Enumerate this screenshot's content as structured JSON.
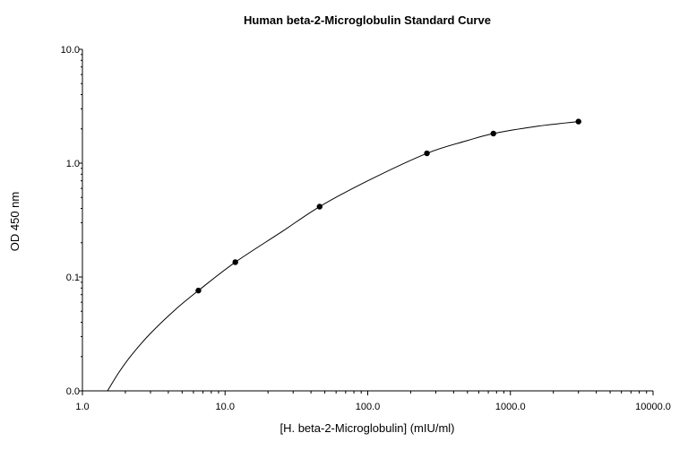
{
  "chart_data": {
    "type": "scatter",
    "title": "Human beta-2-Microglobulin Standard Curve",
    "xlabel": "[H. beta-2-Microglobulin] (mIU/ml)",
    "ylabel": "OD 450 nm",
    "x_scale": "log",
    "y_scale": "log",
    "xlim": [
      1.0,
      10000.0
    ],
    "ylim": [
      0.01,
      10.0
    ],
    "x_ticks": [
      {
        "value": 1,
        "label": "1.0"
      },
      {
        "value": 10,
        "label": "10.0"
      },
      {
        "value": 100,
        "label": "100.0"
      },
      {
        "value": 1000,
        "label": "1000.0"
      },
      {
        "value": 10000,
        "label": "10000.0"
      }
    ],
    "y_ticks": [
      {
        "value": 0.01,
        "label": "0.0"
      },
      {
        "value": 0.1,
        "label": "0.1"
      },
      {
        "value": 1,
        "label": "1.0"
      },
      {
        "value": 10,
        "label": "10.0"
      }
    ],
    "grid": false,
    "legend": "none",
    "series": [
      {
        "points": [
          {
            "x": 6.5,
            "y": 0.076
          },
          {
            "x": 11.8,
            "y": 0.135
          },
          {
            "x": 46.0,
            "y": 0.415
          },
          {
            "x": 260.0,
            "y": 1.22
          },
          {
            "x": 760.0,
            "y": 1.82
          },
          {
            "x": 3000.0,
            "y": 2.32
          }
        ],
        "fit_curve": [
          {
            "x": 1.5,
            "y": 0.01
          },
          {
            "x": 1.8,
            "y": 0.0145
          },
          {
            "x": 2.2,
            "y": 0.0205
          },
          {
            "x": 3.0,
            "y": 0.032
          },
          {
            "x": 4.5,
            "y": 0.052
          },
          {
            "x": 6.5,
            "y": 0.076
          },
          {
            "x": 11.8,
            "y": 0.135
          },
          {
            "x": 25.0,
            "y": 0.25
          },
          {
            "x": 46.0,
            "y": 0.415
          },
          {
            "x": 100.0,
            "y": 0.7
          },
          {
            "x": 260.0,
            "y": 1.22
          },
          {
            "x": 500.0,
            "y": 1.58
          },
          {
            "x": 760.0,
            "y": 1.82
          },
          {
            "x": 1500.0,
            "y": 2.1
          },
          {
            "x": 3000.0,
            "y": 2.32
          }
        ]
      }
    ],
    "colors": {
      "line": "#000000",
      "marker": "#000000",
      "axis": "#000000"
    }
  }
}
